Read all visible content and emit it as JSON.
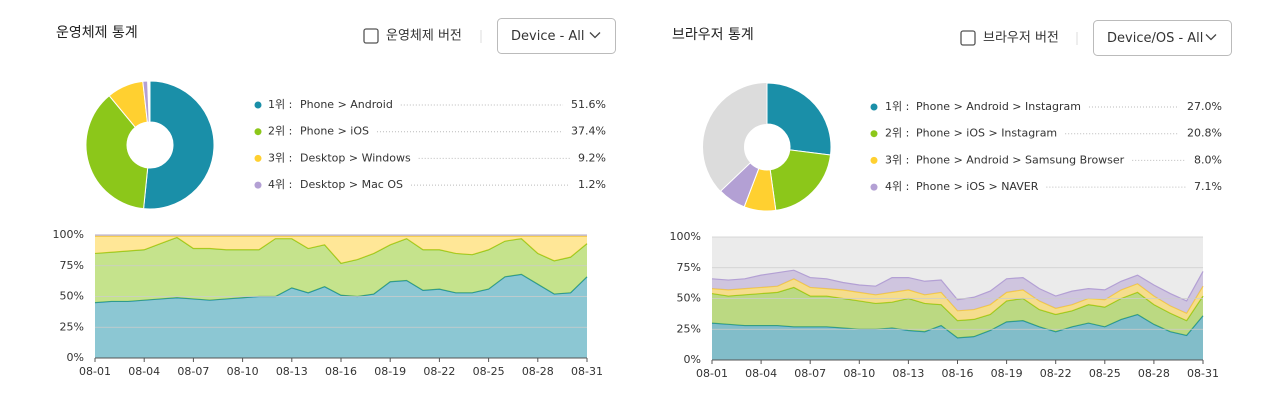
{
  "ui": {
    "panels": [
      {
        "title": "운영체제 통계",
        "checkbox_label": "운영체제 버전",
        "dropdown": "Device - All"
      },
      {
        "title": "브라우저 통계",
        "checkbox_label": "브라우저 버전",
        "dropdown": "Device/OS - All"
      }
    ]
  },
  "chart_data": [
    {
      "type": "pie",
      "ranks": [
        "1위 :",
        "2위 :",
        "3위 :",
        "4위 :"
      ],
      "categories": [
        "Phone > Android",
        "Phone > iOS",
        "Desktop > Windows",
        "Desktop > Mac OS"
      ],
      "values": [
        51.6,
        37.4,
        9.2,
        1.2
      ],
      "value_labels": [
        "51.6%",
        "37.4%",
        "9.2%",
        "1.2%"
      ],
      "colors": [
        "#1a8fa8",
        "#8cc71a",
        "#ffd030",
        "#b3a0d4"
      ]
    },
    {
      "type": "area",
      "stacked": true,
      "categories": [
        "08-01",
        null,
        null,
        "08-04",
        null,
        null,
        "08-07",
        null,
        null,
        "08-10",
        null,
        null,
        "08-13",
        null,
        null,
        "08-16",
        null,
        null,
        "08-19",
        null,
        null,
        "08-22",
        null,
        null,
        "08-25",
        null,
        null,
        "08-28",
        null,
        null,
        "08-31"
      ],
      "series": [
        {
          "color": "#1a8fa8",
          "values": [
            45,
            46,
            46,
            47,
            48,
            49,
            48,
            47,
            48,
            49,
            50,
            50,
            57,
            53,
            58,
            51,
            50,
            52,
            62,
            63,
            55,
            56,
            53,
            53,
            56,
            66,
            68,
            60,
            52,
            53,
            66
          ]
        },
        {
          "color": "#8cc71a",
          "values": [
            40,
            40,
            41,
            41,
            45,
            49,
            41,
            42,
            40,
            39,
            38,
            47,
            40,
            36,
            34,
            26,
            30,
            33,
            30,
            34,
            33,
            32,
            32,
            31,
            32,
            29,
            29,
            25,
            27,
            29,
            27
          ]
        },
        {
          "color": "#ffd030",
          "values": [
            14,
            13,
            12,
            11,
            6,
            1,
            10,
            10,
            11,
            11,
            11,
            2,
            2,
            10,
            7,
            22,
            19,
            14,
            7,
            2,
            11,
            11,
            14,
            15,
            11,
            4,
            2,
            14,
            20,
            17,
            6
          ]
        },
        {
          "color": "#b3a0d4",
          "values": [
            1,
            1,
            1,
            1,
            1,
            1,
            1,
            1,
            1,
            1,
            1,
            1,
            1,
            1,
            1,
            1,
            1,
            1,
            1,
            1,
            1,
            1,
            1,
            1,
            1,
            1,
            1,
            1,
            1,
            1,
            1
          ]
        }
      ],
      "ylim": [
        0,
        100
      ],
      "yticks": [
        {
          "value": 0,
          "label": "0%"
        },
        {
          "value": 25,
          "label": "25%"
        },
        {
          "value": 50,
          "label": "50%"
        },
        {
          "value": 75,
          "label": "75%"
        },
        {
          "value": 100,
          "label": "100%"
        }
      ],
      "grid": true
    },
    {
      "type": "pie",
      "ranks": [
        "1위 :",
        "2위 :",
        "3위 :",
        "4위 :"
      ],
      "categories": [
        "Phone > Android > Instagram",
        "Phone > iOS > Instagram",
        "Phone > Android > Samsung Browser",
        "Phone > iOS > NAVER"
      ],
      "values": [
        27.0,
        20.8,
        8.0,
        7.1
      ],
      "value_labels": [
        "27.0%",
        "20.8%",
        "8.0%",
        "7.1%"
      ],
      "colors": [
        "#1a8fa8",
        "#8cc71a",
        "#ffd030",
        "#b3a0d4"
      ],
      "remainder_color": "#dcdcdc"
    },
    {
      "type": "area",
      "stacked": true,
      "categories": [
        "08-01",
        null,
        null,
        "08-04",
        null,
        null,
        "08-07",
        null,
        null,
        "08-10",
        null,
        null,
        "08-13",
        null,
        null,
        "08-16",
        null,
        null,
        "08-19",
        null,
        null,
        "08-22",
        null,
        null,
        "08-25",
        null,
        null,
        "08-28",
        null,
        null,
        "08-31"
      ],
      "series": [
        {
          "color": "#1a8fa8",
          "values": [
            30,
            29,
            28,
            28,
            28,
            27,
            27,
            27,
            26,
            25,
            25,
            26,
            24,
            23,
            28,
            18,
            19,
            24,
            31,
            32,
            27,
            23,
            27,
            30,
            27,
            33,
            37,
            29,
            23,
            20,
            36
          ]
        },
        {
          "color": "#8cc71a",
          "values": [
            24,
            23,
            25,
            26,
            27,
            32,
            25,
            25,
            24,
            23,
            21,
            21,
            26,
            23,
            17,
            14,
            14,
            13,
            17,
            18,
            14,
            14,
            13,
            15,
            16,
            17,
            18,
            16,
            15,
            12,
            16
          ]
        },
        {
          "color": "#ffd030",
          "values": [
            4,
            5,
            5,
            5,
            5,
            7,
            7,
            6,
            7,
            7,
            7,
            8,
            7,
            7,
            10,
            8,
            8,
            8,
            7,
            7,
            7,
            5,
            5,
            5,
            6,
            7,
            7,
            7,
            6,
            6,
            8
          ]
        },
        {
          "color": "#b3a0d4",
          "values": [
            8,
            8,
            8,
            10,
            11,
            7,
            8,
            8,
            6,
            6,
            7,
            12,
            10,
            11,
            10,
            9,
            10,
            11,
            11,
            10,
            10,
            10,
            11,
            8,
            8,
            7,
            7,
            9,
            10,
            10,
            12
          ]
        }
      ],
      "ylim": [
        0,
        100
      ],
      "yticks": [
        {
          "value": 0,
          "label": "0%"
        },
        {
          "value": 25,
          "label": "25%"
        },
        {
          "value": 50,
          "label": "50%"
        },
        {
          "value": 75,
          "label": "75%"
        },
        {
          "value": 100,
          "label": "100%"
        }
      ],
      "grid": true,
      "plot_background": "#ebebeb"
    }
  ]
}
